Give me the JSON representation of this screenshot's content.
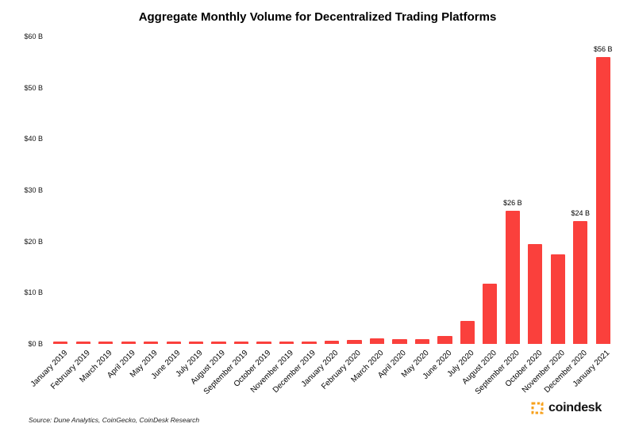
{
  "title": "Aggregate Monthly Volume for Decentralized Trading Platforms",
  "source_note": "Source: Dune Analytics, CoinGecko, CoinDesk Research",
  "logo": {
    "text": "coindesk",
    "icon_color": "#F7A11C"
  },
  "chart_data": {
    "type": "bar",
    "title": "Aggregate Monthly Volume for Decentralized Trading Platforms",
    "xlabel": "",
    "ylabel": "",
    "ylim": [
      0,
      60
    ],
    "yticks": [
      "$0 B",
      "$10 B",
      "$20 B",
      "$30 B",
      "$40 B",
      "$50 B",
      "$60 B"
    ],
    "ytick_values": [
      0,
      10,
      20,
      30,
      40,
      50,
      60
    ],
    "grid": false,
    "legend": "none",
    "bar_color": "#FA403C",
    "categories": [
      "January 2019",
      "February 2019",
      "March 2019",
      "April 2019",
      "May 2019",
      "June 2019",
      "July 2019",
      "August 2019",
      "September 2019",
      "October 2019",
      "November 2019",
      "December 2019",
      "January 2020",
      "February 2020",
      "March 2020",
      "April 2020",
      "May 2020",
      "June 2020",
      "July 2020",
      "August 2020",
      "September 2020",
      "October 2020",
      "November 2020",
      "December 2020",
      "January 2021"
    ],
    "values": [
      0.2,
      0.2,
      0.2,
      0.2,
      0.2,
      0.2,
      0.2,
      0.2,
      0.2,
      0.2,
      0.25,
      0.4,
      0.6,
      0.8,
      1.1,
      1.0,
      0.9,
      1.6,
      4.5,
      11.7,
      26,
      19.5,
      17.5,
      24,
      56
    ],
    "bar_labels": [
      "",
      "",
      "",
      "",
      "",
      "",
      "",
      "",
      "",
      "",
      "",
      "",
      "",
      "",
      "",
      "",
      "",
      "",
      "",
      "",
      "$26 B",
      "",
      "",
      "$24 B",
      "$56 B"
    ]
  }
}
